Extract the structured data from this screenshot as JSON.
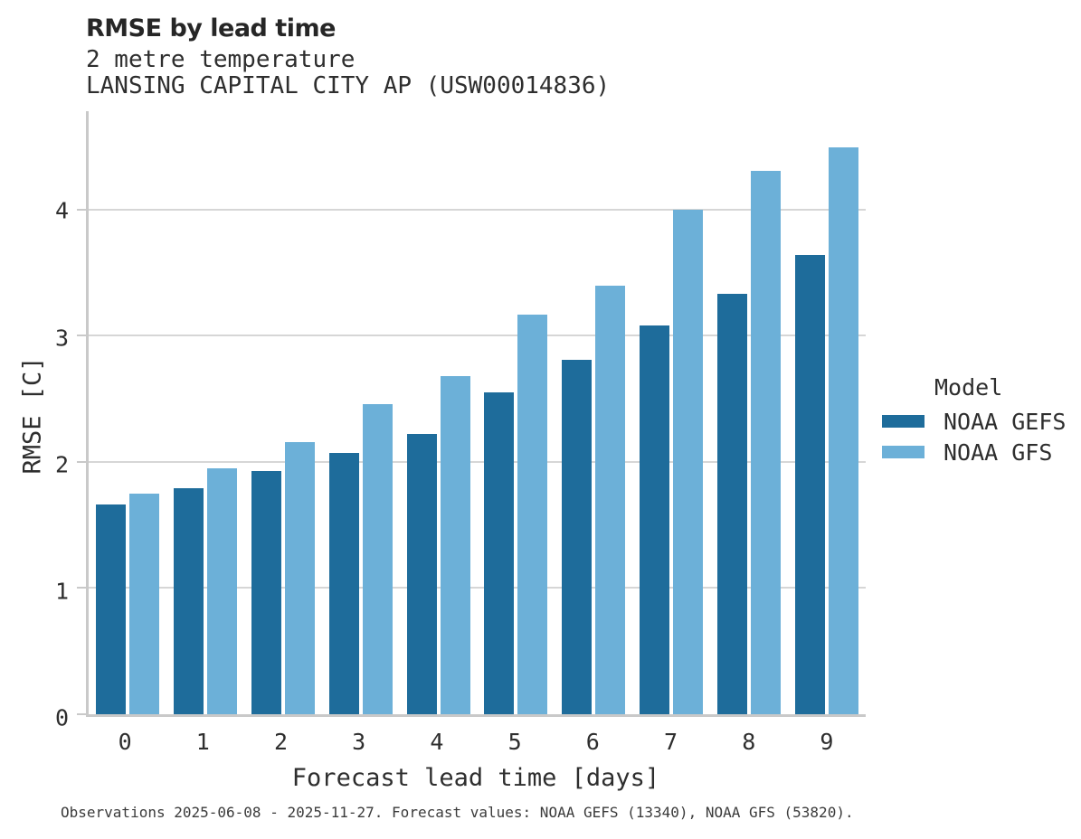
{
  "header": {
    "title": "RMSE by lead time",
    "subtitle1": "2 metre temperature",
    "subtitle2": "LANSING CAPITAL CITY AP (USW00014836)"
  },
  "legend": {
    "title": "Model",
    "items": [
      {
        "label": "NOAA GEFS",
        "color": "#1e6c9b"
      },
      {
        "label": "NOAA GFS",
        "color": "#6cb0d8"
      }
    ]
  },
  "caption": "Observations 2025-06-08 - 2025-11-27. Forecast values: NOAA GEFS (13340), NOAA GFS (53820).",
  "colors": {
    "bar_dark": "#1e6c9b",
    "bar_light": "#6cb0d8",
    "grid": "#d6d6d6",
    "spine": "#c9c9c9",
    "text": "#2e2e2e"
  },
  "chart_data": {
    "type": "bar",
    "title": "RMSE by lead time",
    "subtitle": [
      "2 metre temperature",
      "LANSING CAPITAL CITY AP (USW00014836)"
    ],
    "xlabel": "Forecast lead time [days]",
    "ylabel": "RMSE [C]",
    "categories": [
      "0",
      "1",
      "2",
      "3",
      "4",
      "5",
      "6",
      "7",
      "8",
      "9"
    ],
    "series": [
      {
        "name": "NOAA GEFS",
        "color": "#1e6c9b",
        "values": [
          1.66,
          1.79,
          1.93,
          2.07,
          2.22,
          2.55,
          2.81,
          3.08,
          3.33,
          3.64
        ]
      },
      {
        "name": "NOAA GFS",
        "color": "#6cb0d8",
        "values": [
          1.75,
          1.95,
          2.16,
          2.46,
          2.68,
          3.17,
          3.4,
          4.0,
          4.31,
          4.49
        ]
      }
    ],
    "ylim": [
      0,
      4.78
    ],
    "yticks": [
      0,
      1,
      2,
      3,
      4
    ],
    "grid": "horizontal",
    "grid_on_ticks": [
      1,
      2,
      3,
      4
    ],
    "legend_title": "Model",
    "legend_position": "right"
  }
}
